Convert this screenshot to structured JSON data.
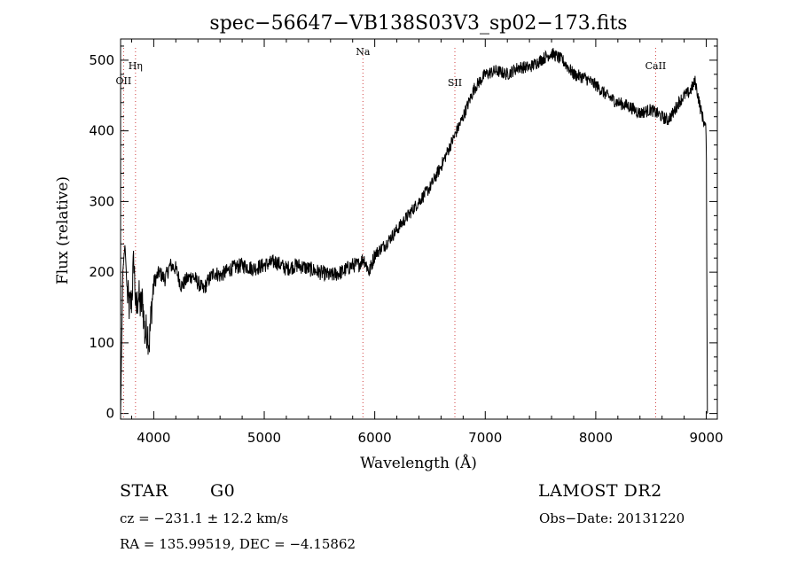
{
  "chart_data": {
    "type": "line",
    "title": "spec−56647−VB138S03V3_sp02−173.fits",
    "xlabel": "Wavelength (Å)",
    "ylabel": "Flux (relative)",
    "xlim": [
      3700,
      9100
    ],
    "ylim": [
      -8,
      530
    ],
    "x_ticks": [
      4000,
      5000,
      6000,
      7000,
      8000,
      9000
    ],
    "y_ticks": [
      0,
      100,
      200,
      300,
      400,
      500
    ],
    "grid": false,
    "series": [
      {
        "x": [
          3700,
          3720,
          3740,
          3760,
          3780,
          3800,
          3820,
          3840,
          3860,
          3880,
          3900,
          3920,
          3940,
          3960,
          3980,
          4000,
          4050,
          4100,
          4150,
          4200,
          4250,
          4300,
          4350,
          4400,
          4450,
          4500,
          4550,
          4600,
          4650,
          4700,
          4800,
          4900,
          5000,
          5100,
          5200,
          5300,
          5400,
          5500,
          5600,
          5700,
          5800,
          5850,
          5900,
          5950,
          6000,
          6100,
          6200,
          6300,
          6400,
          6500,
          6600,
          6700,
          6800,
          6900,
          7000,
          7100,
          7200,
          7300,
          7400,
          7500,
          7600,
          7650,
          7700,
          7800,
          7900,
          8000,
          8100,
          8200,
          8300,
          8400,
          8500,
          8600,
          8650,
          8700,
          8750,
          8800,
          8850,
          8900,
          8950,
          9000,
          9010
        ],
        "y": [
          0,
          200,
          240,
          170,
          150,
          160,
          220,
          140,
          170,
          150,
          160,
          110,
          120,
          100,
          150,
          185,
          200,
          190,
          210,
          205,
          180,
          190,
          195,
          185,
          175,
          190,
          200,
          195,
          200,
          205,
          210,
          205,
          210,
          215,
          205,
          210,
          205,
          200,
          195,
          200,
          210,
          210,
          220,
          200,
          225,
          240,
          260,
          280,
          300,
          320,
          350,
          385,
          420,
          460,
          480,
          485,
          480,
          490,
          490,
          500,
          510,
          505,
          500,
          480,
          475,
          465,
          450,
          440,
          435,
          425,
          430,
          420,
          415,
          425,
          440,
          450,
          455,
          470,
          430,
          400,
          0
        ]
      }
    ],
    "lines": [
      {
        "label": "Hη",
        "x": 3835
      },
      {
        "label": "OII",
        "x": 3727
      },
      {
        "label": "Na",
        "x": 5893
      },
      {
        "label": "SII",
        "x": 6725
      },
      {
        "label": "CaII",
        "x": 8542
      }
    ]
  },
  "info": {
    "class": "STAR",
    "subclass": "G0",
    "survey": "LAMOST DR2",
    "cz": "cz = −231.1 ± 12.2 km/s",
    "obs_date": "Obs−Date: 20131220",
    "radec": "RA = 135.99519, DEC =  −4.15862"
  },
  "colors": {
    "line_marker": "#d04040",
    "spectrum": "#000000"
  }
}
